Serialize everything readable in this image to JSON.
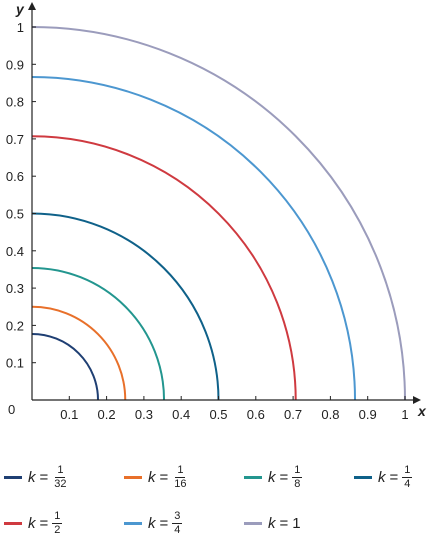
{
  "chart_data": {
    "type": "line",
    "xlabel": "x",
    "ylabel": "y",
    "xlim": [
      0,
      1
    ],
    "ylim": [
      0,
      1
    ],
    "origin_label": "0",
    "x_ticks": [
      "0.1",
      "0.2",
      "0.3",
      "0.4",
      "0.5",
      "0.6",
      "0.7",
      "0.8",
      "0.9",
      "1"
    ],
    "y_ticks": [
      "0.1",
      "0.2",
      "0.3",
      "0.4",
      "0.5",
      "0.6",
      "0.7",
      "0.8",
      "0.9",
      "1"
    ],
    "grid": false,
    "legend_position": "bottom",
    "series": [
      {
        "name": "k = 1/32",
        "label_k": "k",
        "label_eq": "=",
        "numerator": "1",
        "denominator": "32",
        "radius": 0.177,
        "color": "#1f3f73"
      },
      {
        "name": "k = 1/16",
        "label_k": "k",
        "label_eq": "=",
        "numerator": "1",
        "denominator": "16",
        "radius": 0.25,
        "color": "#e8702a"
      },
      {
        "name": "k = 1/8",
        "label_k": "k",
        "label_eq": "=",
        "numerator": "1",
        "denominator": "8",
        "radius": 0.354,
        "color": "#23968f"
      },
      {
        "name": "k = 1/4",
        "label_k": "k",
        "label_eq": "=",
        "numerator": "1",
        "denominator": "4",
        "radius": 0.5,
        "color": "#0f6189"
      },
      {
        "name": "k = 1/2",
        "label_k": "k",
        "label_eq": "=",
        "numerator": "1",
        "denominator": "2",
        "radius": 0.707,
        "color": "#cf3a40"
      },
      {
        "name": "k = 3/4",
        "label_k": "k",
        "label_eq": "=",
        "numerator": "3",
        "denominator": "4",
        "radius": 0.866,
        "color": "#4c97d0"
      },
      {
        "name": "k = 1",
        "label_k": "k",
        "label_eq": "=",
        "whole": "1",
        "radius": 1.0,
        "color": "#9b9cbc"
      }
    ]
  }
}
